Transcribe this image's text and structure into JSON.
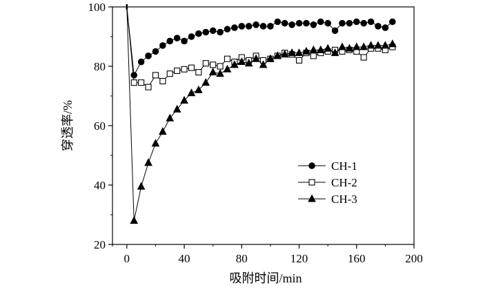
{
  "chart_data": {
    "type": "line",
    "title": "",
    "xlabel": "吸附时间/min",
    "ylabel": "穿透率/%",
    "xlim": [
      -10,
      200
    ],
    "ylim": [
      20,
      100
    ],
    "xticks": [
      "0",
      "40",
      "80",
      "120",
      "160",
      "200"
    ],
    "yticks": [
      "20",
      "40",
      "60",
      "80",
      "100"
    ],
    "grid": false,
    "legend": "bottom-right",
    "series": [
      {
        "name": "CH-1",
        "marker": "filled-circle",
        "color": "#000000",
        "x": [
          0,
          5,
          10,
          15,
          20,
          25,
          30,
          35,
          40,
          45,
          50,
          55,
          60,
          65,
          70,
          75,
          80,
          85,
          90,
          95,
          100,
          105,
          110,
          115,
          120,
          125,
          130,
          135,
          140,
          145,
          150,
          155,
          160,
          165,
          170,
          175,
          180,
          185
        ],
        "y": [
          100,
          77,
          81.5,
          83.5,
          85,
          87,
          88.5,
          89.5,
          88.5,
          90,
          91,
          91.5,
          92,
          91.5,
          92.5,
          93,
          93.5,
          93.5,
          94,
          93.5,
          93.5,
          95,
          94.5,
          94,
          94.5,
          94.5,
          94,
          95,
          94.5,
          92,
          94.5,
          94.5,
          95,
          94.5,
          95,
          93.5,
          93,
          95
        ]
      },
      {
        "name": "CH-2",
        "marker": "open-square",
        "color": "#000000",
        "x": [
          0,
          5,
          10,
          15,
          20,
          25,
          30,
          35,
          40,
          45,
          50,
          55,
          60,
          65,
          70,
          75,
          80,
          85,
          90,
          95,
          100,
          105,
          110,
          115,
          120,
          125,
          130,
          135,
          140,
          145,
          150,
          155,
          160,
          165,
          170,
          175,
          180,
          185
        ],
        "y": [
          100,
          74.5,
          74.5,
          73,
          77,
          75,
          77.5,
          78.5,
          79,
          79.5,
          78,
          81,
          80.5,
          80,
          82.5,
          81.5,
          83,
          82,
          83.5,
          82,
          82.5,
          83.5,
          84.5,
          84,
          82,
          84.5,
          83.5,
          84.5,
          85,
          85.5,
          85,
          85.5,
          85,
          83,
          86,
          86,
          85.5,
          86.5
        ]
      },
      {
        "name": "CH-3",
        "marker": "filled-triangle",
        "color": "#000000",
        "x": [
          0,
          5,
          10,
          15,
          20,
          25,
          30,
          35,
          40,
          45,
          50,
          55,
          60,
          65,
          70,
          75,
          80,
          85,
          90,
          95,
          100,
          105,
          110,
          115,
          120,
          125,
          130,
          135,
          140,
          145,
          150,
          155,
          160,
          165,
          170,
          175,
          180,
          185
        ],
        "y": [
          100,
          28,
          39.5,
          47.5,
          54,
          58,
          62.5,
          65.5,
          68.5,
          71,
          72,
          74.5,
          78,
          77.5,
          79,
          80.5,
          81.5,
          81,
          82.5,
          80.5,
          82.5,
          83.5,
          84,
          84.5,
          84.5,
          85,
          85.5,
          85.5,
          86,
          84.5,
          86.5,
          86,
          86.5,
          86.5,
          87,
          87,
          87,
          87.5
        ]
      }
    ]
  }
}
